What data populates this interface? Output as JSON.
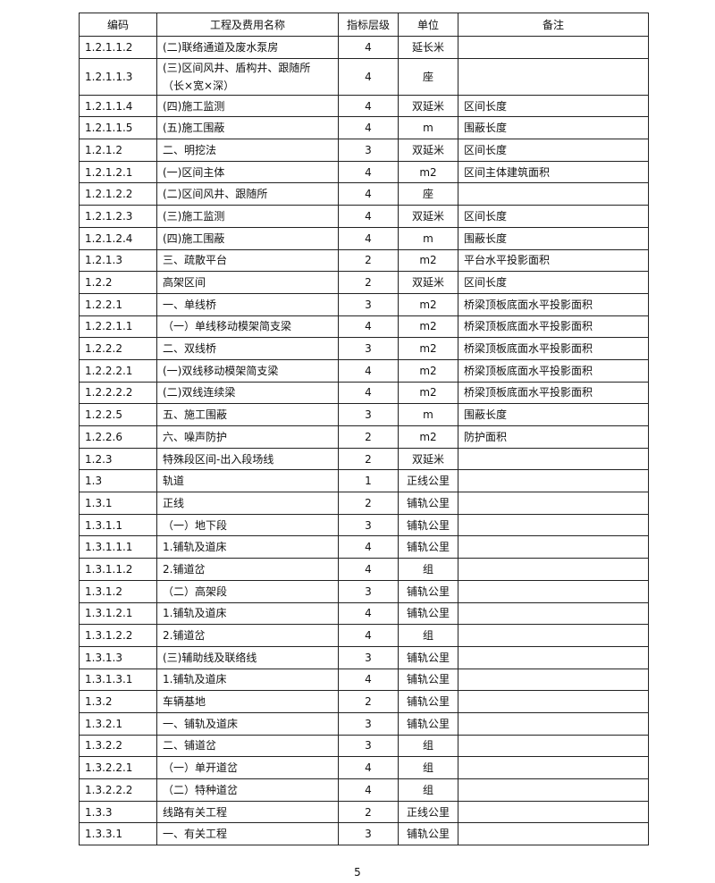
{
  "table": {
    "header": [
      "编码",
      "工程及费用名称",
      "指标层级",
      "单位",
      "备注"
    ],
    "rows": [
      [
        "1.2.1.1.2",
        "(二)联络通道及废水泵房",
        "4",
        "延长米",
        ""
      ],
      [
        "1.2.1.1.3",
        "(三)区间风井、盾构井、跟随所\n（长×宽×深）",
        "4",
        "座",
        ""
      ],
      [
        "1.2.1.1.4",
        "(四)施工监测",
        "4",
        "双延米",
        "区间长度"
      ],
      [
        "1.2.1.1.5",
        "(五)施工围蔽",
        "4",
        "m",
        "围蔽长度"
      ],
      [
        "1.2.1.2",
        "二、明挖法",
        "3",
        "双延米",
        "区间长度"
      ],
      [
        "1.2.1.2.1",
        "(一)区间主体",
        "4",
        "m2",
        "区间主体建筑面积"
      ],
      [
        "1.2.1.2.2",
        "(二)区间风井、跟随所",
        "4",
        "座",
        ""
      ],
      [
        "1.2.1.2.3",
        "(三)施工监测",
        "4",
        "双延米",
        "区间长度"
      ],
      [
        "1.2.1.2.4",
        "(四)施工围蔽",
        "4",
        "m",
        "围蔽长度"
      ],
      [
        "1.2.1.3",
        "三、疏散平台",
        "2",
        "m2",
        "平台水平投影面积"
      ],
      [
        "1.2.2",
        "高架区间",
        "2",
        "双延米",
        "区间长度"
      ],
      [
        "1.2.2.1",
        "一、单线桥",
        "3",
        "m2",
        "桥梁顶板底面水平投影面积"
      ],
      [
        "1.2.2.1.1",
        "（一）单线移动模架简支梁",
        "4",
        "m2",
        "桥梁顶板底面水平投影面积"
      ],
      [
        "1.2.2.2",
        "二、双线桥",
        "3",
        "m2",
        "桥梁顶板底面水平投影面积"
      ],
      [
        "1.2.2.2.1",
        "(一)双线移动模架简支梁",
        "4",
        "m2",
        "桥梁顶板底面水平投影面积"
      ],
      [
        "1.2.2.2.2",
        "(二)双线连续梁",
        "4",
        "m2",
        "桥梁顶板底面水平投影面积"
      ],
      [
        "1.2.2.5",
        "五、施工围蔽",
        "3",
        "m",
        "围蔽长度"
      ],
      [
        "1.2.2.6",
        "六、噪声防护",
        "2",
        "m2",
        "防护面积"
      ],
      [
        "1.2.3",
        "特殊段区间-出入段场线",
        "2",
        "双延米",
        ""
      ],
      [
        "1.3",
        "轨道",
        "1",
        "正线公里",
        ""
      ],
      [
        "1.3.1",
        "正线",
        "2",
        "铺轨公里",
        ""
      ],
      [
        "1.3.1.1",
        "（一）地下段",
        "3",
        "铺轨公里",
        ""
      ],
      [
        "1.3.1.1.1",
        "1.铺轨及道床",
        "4",
        "铺轨公里",
        ""
      ],
      [
        "1.3.1.1.2",
        "2.铺道岔",
        "4",
        "组",
        ""
      ],
      [
        "1.3.1.2",
        "（二）高架段",
        "3",
        "铺轨公里",
        ""
      ],
      [
        "1.3.1.2.1",
        "1.铺轨及道床",
        "4",
        "铺轨公里",
        ""
      ],
      [
        "1.3.1.2.2",
        "2.铺道岔",
        "4",
        "组",
        ""
      ],
      [
        "1.3.1.3",
        "(三)辅助线及联络线",
        "3",
        "铺轨公里",
        ""
      ],
      [
        "1.3.1.3.1",
        "1.铺轨及道床",
        "4",
        "铺轨公里",
        ""
      ],
      [
        "1.3.2",
        "车辆基地",
        "2",
        "铺轨公里",
        ""
      ],
      [
        "1.3.2.1",
        "一、铺轨及道床",
        "3",
        "铺轨公里",
        ""
      ],
      [
        "1.3.2.2",
        "二、铺道岔",
        "3",
        "组",
        ""
      ],
      [
        "1.3.2.2.1",
        "（一）单开道岔",
        "4",
        "组",
        ""
      ],
      [
        "1.3.2.2.2",
        "（二）特种道岔",
        "4",
        "组",
        ""
      ],
      [
        "1.3.3",
        "线路有关工程",
        "2",
        "正线公里",
        ""
      ],
      [
        "1.3.3.1",
        "一、有关工程",
        "3",
        "铺轨公里",
        ""
      ]
    ]
  },
  "footer": {
    "page_number": "5"
  }
}
